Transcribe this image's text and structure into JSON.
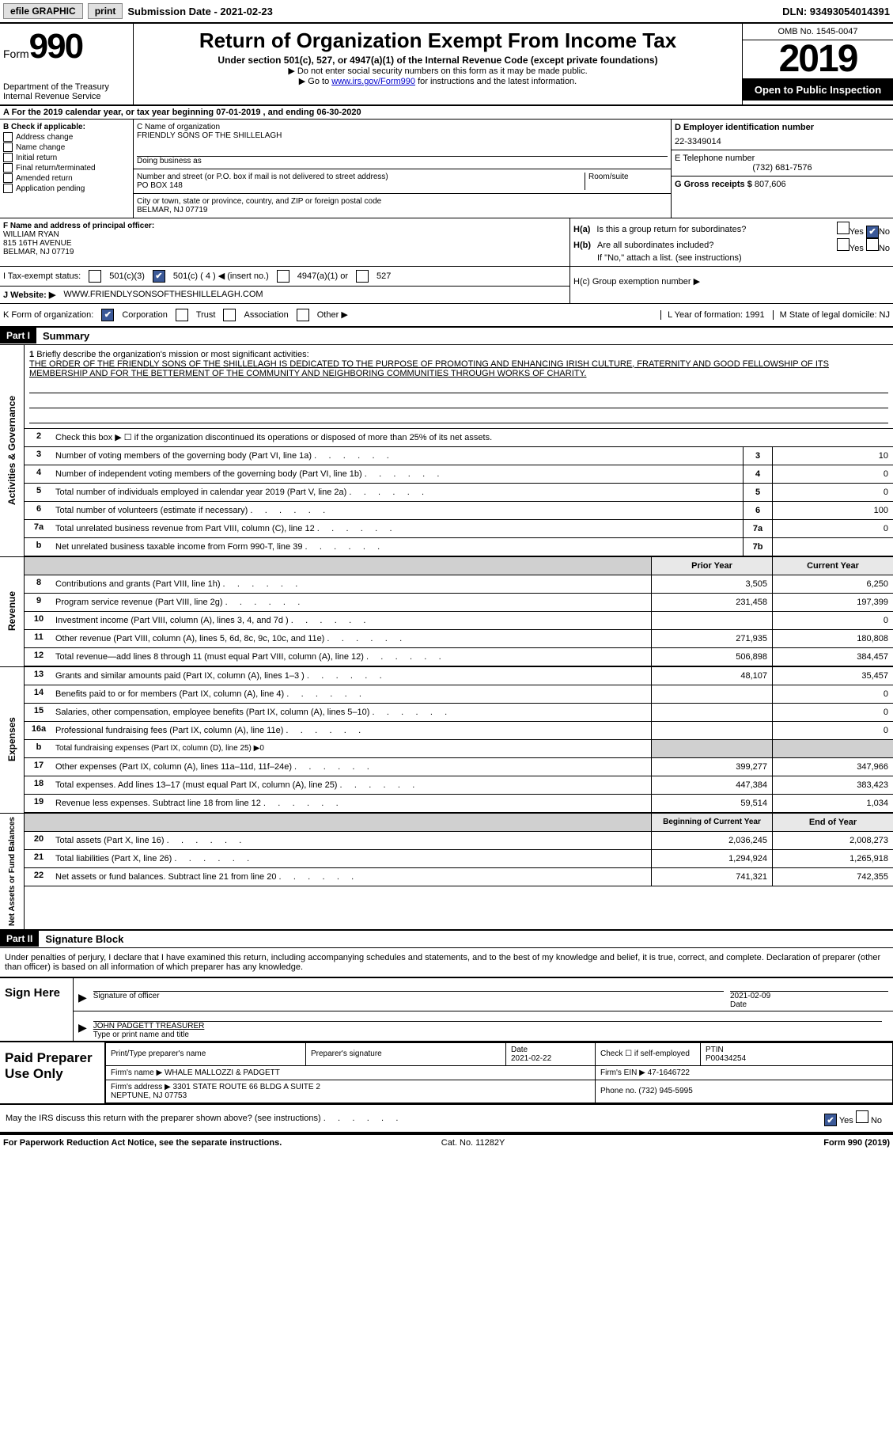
{
  "topbar": {
    "efile_label": "efile GRAPHIC",
    "print_btn": "print",
    "sub_date_label": "Submission Date - 2021-02-23",
    "dln": "DLN: 93493054014391"
  },
  "header": {
    "form_word": "Form",
    "form_num": "990",
    "dept": "Department of the Treasury\nInternal Revenue Service",
    "title": "Return of Organization Exempt From Income Tax",
    "subtitle": "Under section 501(c), 527, or 4947(a)(1) of the Internal Revenue Code (except private foundations)",
    "note1": "▶ Do not enter social security numbers on this form as it may be made public.",
    "note2_pre": "▶ Go to ",
    "note2_link": "www.irs.gov/Form990",
    "note2_post": " for instructions and the latest information.",
    "omb": "OMB No. 1545-0047",
    "year": "2019",
    "open_pub": "Open to Public Inspection"
  },
  "rowA": "A For the 2019 calendar year, or tax year beginning 07-01-2019    , and ending 06-30-2020",
  "colB": {
    "label": "B Check if applicable:",
    "opts": [
      "Address change",
      "Name change",
      "Initial return",
      "Final return/terminated",
      "Amended return",
      "Application pending"
    ]
  },
  "colC": {
    "name_label": "C Name of organization",
    "name": "FRIENDLY SONS OF THE SHILLELAGH",
    "dba_label": "Doing business as",
    "addr_label": "Number and street (or P.O. box if mail is not delivered to street address)",
    "room_label": "Room/suite",
    "addr": "PO BOX 148",
    "city_label": "City or town, state or province, country, and ZIP or foreign postal code",
    "city": "BELMAR, NJ  07719"
  },
  "colD": {
    "ein_label": "D Employer identification number",
    "ein": "22-3349014",
    "phone_label": "E Telephone number",
    "phone": "(732) 681-7576",
    "gross_label": "G Gross receipts $",
    "gross": "807,606"
  },
  "rowF": {
    "label": "F Name and address of principal officer:",
    "name": "WILLIAM RYAN",
    "addr1": "815 16TH AVENUE",
    "addr2": "BELMAR, NJ  07719"
  },
  "rowH": {
    "ha_label": "H(a)  Is this a group return for subordinates?",
    "hb_label": "H(b)  Are all subordinates included?",
    "hb_note": "If \"No,\" attach a list. (see instructions)",
    "hc_label": "H(c)  Group exemption number ▶",
    "yes": "Yes",
    "no": "No"
  },
  "rowI": {
    "label": "I   Tax-exempt status:",
    "o1": "501(c)(3)",
    "o2": "501(c) ( 4 ) ◀ (insert no.)",
    "o3": "4947(a)(1) or",
    "o4": "527"
  },
  "rowJ": {
    "label": "J   Website: ▶",
    "val": "WWW.FRIENDLYSONSOFTHESHILLELAGH.COM"
  },
  "rowK": {
    "label": "K Form of organization:",
    "o1": "Corporation",
    "o2": "Trust",
    "o3": "Association",
    "o4": "Other ▶"
  },
  "rowLM": {
    "l": "L Year of formation: 1991",
    "m": "M State of legal domicile: NJ"
  },
  "part1": {
    "hdr": "Part I",
    "title": "Summary"
  },
  "summary": {
    "l1_label": "Briefly describe the organization's mission or most significant activities:",
    "l1_text": "THE ORDER OF THE FRIENDLY SONS OF THE SHILLELAGH IS DEDICATED TO THE PURPOSE OF PROMOTING AND ENHANCING IRISH CULTURE, FRATERNITY AND GOOD FELLOWSHIP OF ITS MEMBERSHIP AND FOR THE BETTERMENT OF THE COMMUNITY AND NEIGHBORING COMMUNITIES THROUGH WORKS OF CHARITY.",
    "l2": "Check this box ▶ ☐  if the organization discontinued its operations or disposed of more than 25% of its net assets.",
    "lines_gov": [
      {
        "n": "3",
        "t": "Number of voting members of the governing body (Part VI, line 1a)",
        "box": "3",
        "v": "10"
      },
      {
        "n": "4",
        "t": "Number of independent voting members of the governing body (Part VI, line 1b)",
        "box": "4",
        "v": "0"
      },
      {
        "n": "5",
        "t": "Total number of individuals employed in calendar year 2019 (Part V, line 2a)",
        "box": "5",
        "v": "0"
      },
      {
        "n": "6",
        "t": "Total number of volunteers (estimate if necessary)",
        "box": "6",
        "v": "100"
      },
      {
        "n": "7a",
        "t": "Total unrelated business revenue from Part VIII, column (C), line 12",
        "box": "7a",
        "v": "0"
      },
      {
        "n": "b",
        "t": "Net unrelated business taxable income from Form 990-T, line 39",
        "box": "7b",
        "v": ""
      }
    ],
    "col_hdr_prior": "Prior Year",
    "col_hdr_curr": "Current Year",
    "rev_lines": [
      {
        "n": "8",
        "t": "Contributions and grants (Part VIII, line 1h)",
        "p": "3,505",
        "c": "6,250"
      },
      {
        "n": "9",
        "t": "Program service revenue (Part VIII, line 2g)",
        "p": "231,458",
        "c": "197,399"
      },
      {
        "n": "10",
        "t": "Investment income (Part VIII, column (A), lines 3, 4, and 7d )",
        "p": "",
        "c": "0"
      },
      {
        "n": "11",
        "t": "Other revenue (Part VIII, column (A), lines 5, 6d, 8c, 9c, 10c, and 11e)",
        "p": "271,935",
        "c": "180,808"
      },
      {
        "n": "12",
        "t": "Total revenue—add lines 8 through 11 (must equal Part VIII, column (A), line 12)",
        "p": "506,898",
        "c": "384,457"
      }
    ],
    "exp_lines": [
      {
        "n": "13",
        "t": "Grants and similar amounts paid (Part IX, column (A), lines 1–3 )",
        "p": "48,107",
        "c": "35,457"
      },
      {
        "n": "14",
        "t": "Benefits paid to or for members (Part IX, column (A), line 4)",
        "p": "",
        "c": "0"
      },
      {
        "n": "15",
        "t": "Salaries, other compensation, employee benefits (Part IX, column (A), lines 5–10)",
        "p": "",
        "c": "0"
      },
      {
        "n": "16a",
        "t": "Professional fundraising fees (Part IX, column (A), line 11e)",
        "p": "",
        "c": "0"
      },
      {
        "n": "b",
        "t": "Total fundraising expenses (Part IX, column (D), line 25) ▶0",
        "p": null,
        "c": null
      },
      {
        "n": "17",
        "t": "Other expenses (Part IX, column (A), lines 11a–11d, 11f–24e)",
        "p": "399,277",
        "c": "347,966"
      },
      {
        "n": "18",
        "t": "Total expenses. Add lines 13–17 (must equal Part IX, column (A), line 25)",
        "p": "447,384",
        "c": "383,423"
      },
      {
        "n": "19",
        "t": "Revenue less expenses. Subtract line 18 from line 12",
        "p": "59,514",
        "c": "1,034"
      }
    ],
    "na_hdr_beg": "Beginning of Current Year",
    "na_hdr_end": "End of Year",
    "na_lines": [
      {
        "n": "20",
        "t": "Total assets (Part X, line 16)",
        "p": "2,036,245",
        "c": "2,008,273"
      },
      {
        "n": "21",
        "t": "Total liabilities (Part X, line 26)",
        "p": "1,294,924",
        "c": "1,265,918"
      },
      {
        "n": "22",
        "t": "Net assets or fund balances. Subtract line 21 from line 20",
        "p": "741,321",
        "c": "742,355"
      }
    ],
    "side_gov": "Activities & Governance",
    "side_rev": "Revenue",
    "side_exp": "Expenses",
    "side_na": "Net Assets or Fund Balances"
  },
  "part2": {
    "hdr": "Part II",
    "title": "Signature Block"
  },
  "sig": {
    "decl": "Under penalties of perjury, I declare that I have examined this return, including accompanying schedules and statements, and to the best of my knowledge and belief, it is true, correct, and complete. Declaration of preparer (other than officer) is based on all information of which preparer has any knowledge.",
    "sign_here": "Sign Here",
    "sig_of_officer": "Signature of officer",
    "sig_date": "2021-02-09",
    "date_lbl": "Date",
    "officer_name": "JOHN PADGETT TREASURER",
    "name_title_lbl": "Type or print name and title",
    "paid_prep": "Paid Preparer Use Only",
    "prep_name_lbl": "Print/Type preparer's name",
    "prep_sig_lbl": "Preparer's signature",
    "prep_date_lbl": "Date",
    "prep_date": "2021-02-22",
    "self_emp": "Check ☐ if self-employed",
    "ptin_lbl": "PTIN",
    "ptin": "P00434254",
    "firm_name_lbl": "Firm's name      ▶",
    "firm_name": "WHALE MALLOZZI & PADGETT",
    "firm_ein_lbl": "Firm's EIN ▶",
    "firm_ein": "47-1646722",
    "firm_addr_lbl": "Firm's address ▶",
    "firm_addr": "3301 STATE ROUTE 66 BLDG A SUITE 2\nNEPTUNE, NJ  07753",
    "firm_phone_lbl": "Phone no.",
    "firm_phone": "(732) 945-5995",
    "may_irs": "May the IRS discuss this return with the preparer shown above? (see instructions)"
  },
  "footer": {
    "pra": "For Paperwork Reduction Act Notice, see the separate instructions.",
    "cat": "Cat. No. 11282Y",
    "form": "Form 990 (2019)"
  }
}
